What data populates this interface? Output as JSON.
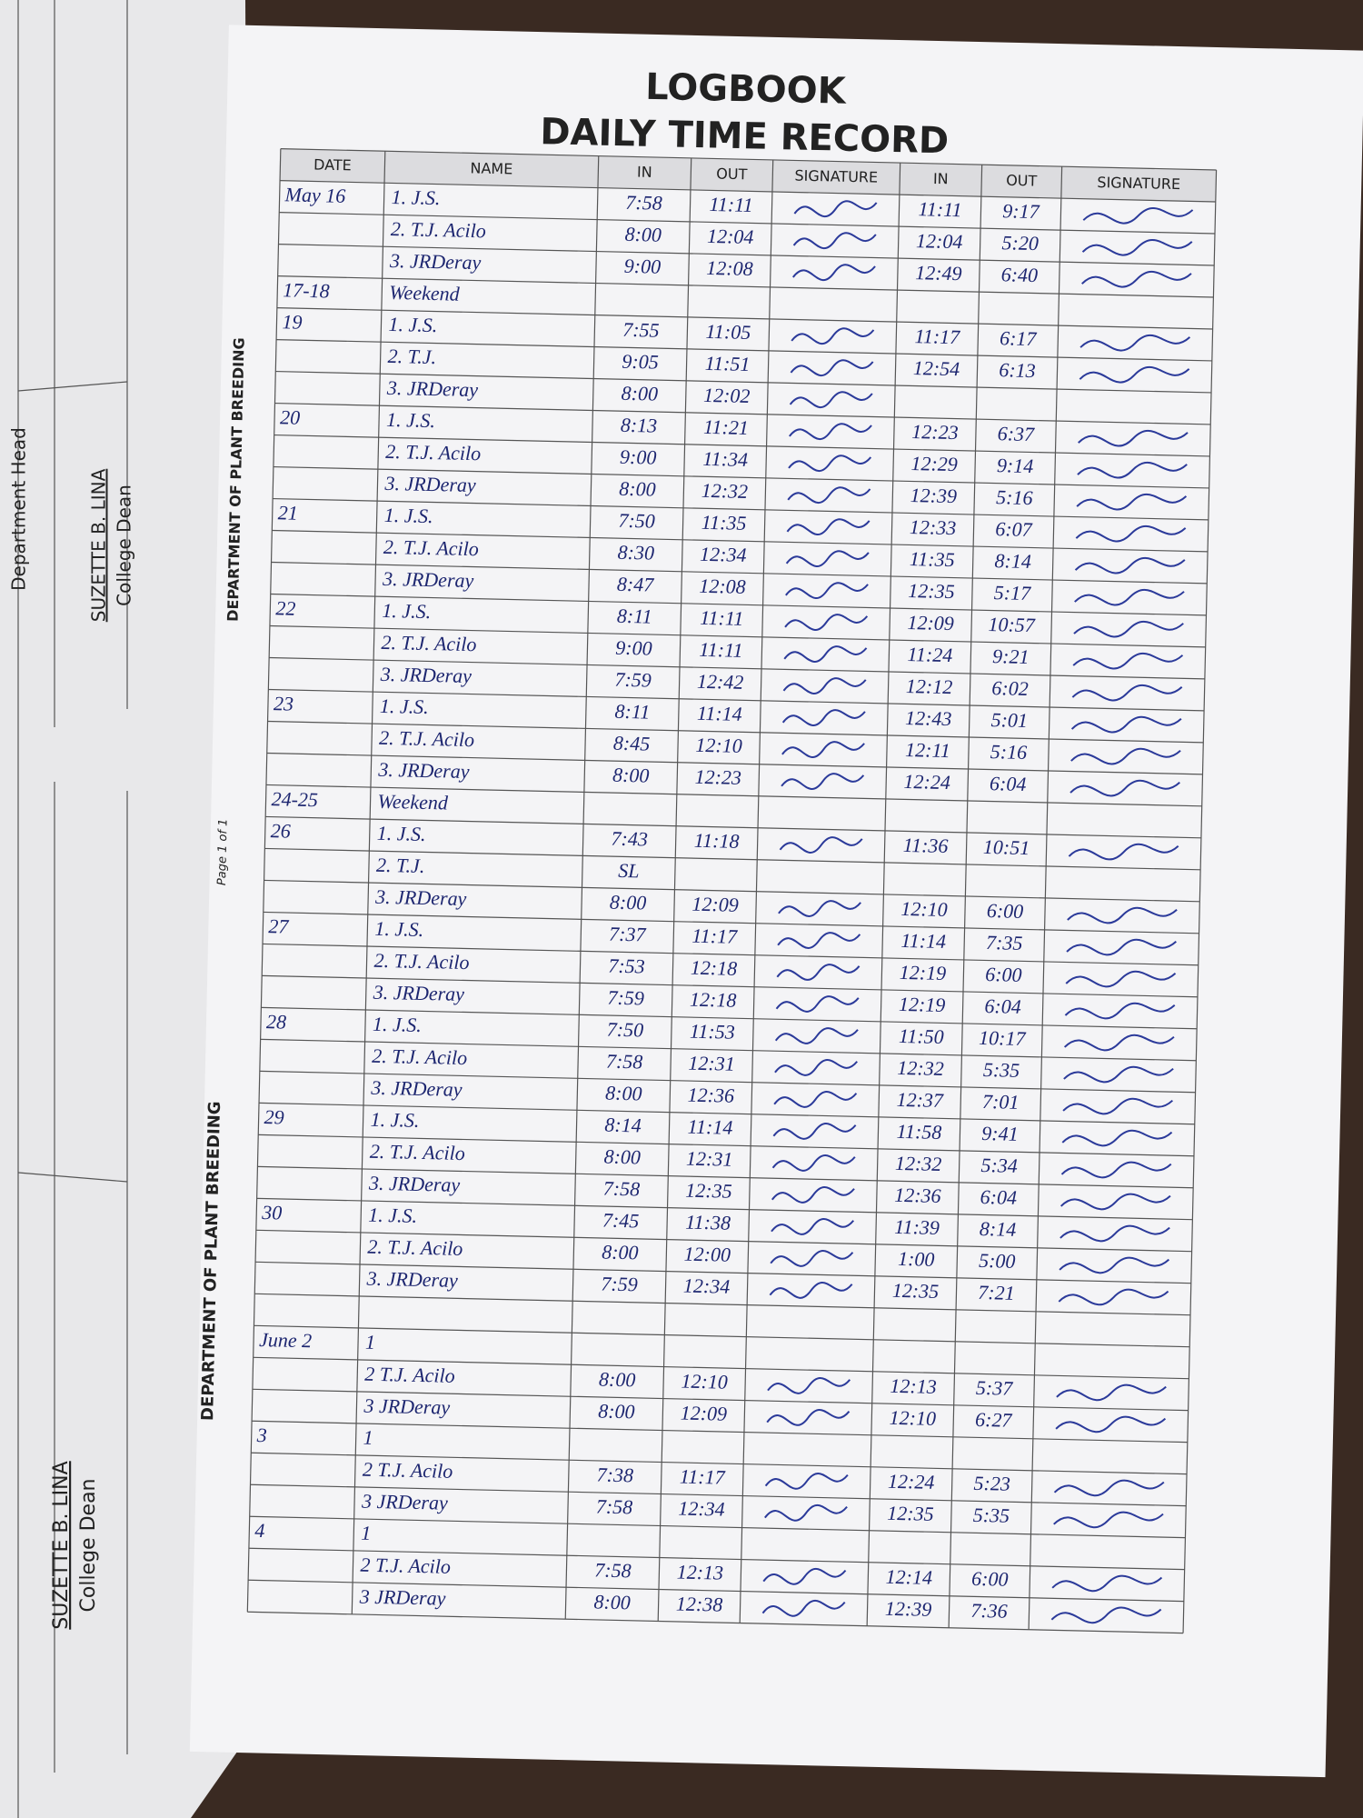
{
  "header": {
    "title": "LOGBOOK",
    "subtitle": "DAILY TIME RECORD"
  },
  "left_page": {
    "department_head": "Department Head",
    "signatories": [
      {
        "name": "SUZETTE B. LINA",
        "role": "College Dean"
      },
      {
        "name": "SUZETTE B. LINA",
        "role": "College Dean"
      }
    ],
    "side_text": [
      "DEPARTMENT OF PLANT BREEDING",
      "Page 1 of 1",
      "DEPARTMENT OF PLANT BREEDING"
    ]
  },
  "table": {
    "columns": [
      "DATE",
      "NAME",
      "IN",
      "OUT",
      "SIGNATURE",
      "IN",
      "OUT",
      "SIGNATURE"
    ],
    "rows": [
      {
        "date": "May 16",
        "name": "1. J.S.",
        "in": "7:58",
        "out": "11:11",
        "in2": "11:11",
        "out2": "9:17"
      },
      {
        "name": "2. T.J. Acilo",
        "in": "8:00",
        "out": "12:04",
        "in2": "12:04",
        "out2": "5:20"
      },
      {
        "name": "3. JRDeray",
        "in": "9:00",
        "out": "12:08",
        "in2": "12:49",
        "out2": "6:40"
      },
      {
        "date": "17-18",
        "name": "Weekend"
      },
      {
        "date": "19",
        "name": "1. J.S.",
        "in": "7:55",
        "out": "11:05",
        "in2": "11:17",
        "out2": "6:17"
      },
      {
        "name": "2. T.J.",
        "in": "9:05",
        "out": "11:51",
        "in2": "12:54",
        "out2": "6:13"
      },
      {
        "name": "3. JRDeray",
        "in": "8:00",
        "out": "12:02"
      },
      {
        "date": "20",
        "name": "1. J.S.",
        "in": "8:13",
        "out": "11:21",
        "in2": "12:23",
        "out2": "6:37"
      },
      {
        "name": "2. T.J. Acilo",
        "in": "9:00",
        "out": "11:34",
        "in2": "12:29",
        "out2": "9:14"
      },
      {
        "name": "3. JRDeray",
        "in": "8:00",
        "out": "12:32",
        "in2": "12:39",
        "out2": "5:16"
      },
      {
        "date": "21",
        "name": "1. J.S.",
        "in": "7:50",
        "out": "11:35",
        "in2": "12:33",
        "out2": "6:07"
      },
      {
        "name": "2. T.J. Acilo",
        "in": "8:30",
        "out": "12:34",
        "in2": "11:35",
        "out2": "8:14"
      },
      {
        "name": "3. JRDeray",
        "in": "8:47",
        "out": "12:08",
        "in2": "12:35",
        "out2": "5:17"
      },
      {
        "date": "22",
        "name": "1. J.S.",
        "in": "8:11",
        "out": "11:11",
        "in2": "12:09",
        "out2": "10:57"
      },
      {
        "name": "2. T.J. Acilo",
        "in": "9:00",
        "out": "11:11",
        "in2": "11:24",
        "out2": "9:21"
      },
      {
        "name": "3. JRDeray",
        "in": "7:59",
        "out": "12:42",
        "in2": "12:12",
        "out2": "6:02"
      },
      {
        "date": "23",
        "name": "1. J.S.",
        "in": "8:11",
        "out": "11:14",
        "in2": "12:43",
        "out2": "5:01"
      },
      {
        "name": "2. T.J. Acilo",
        "in": "8:45",
        "out": "12:10",
        "in2": "12:11",
        "out2": "5:16"
      },
      {
        "name": "3. JRDeray",
        "in": "8:00",
        "out": "12:23",
        "in2": "12:24",
        "out2": "6:04"
      },
      {
        "date": "24-25",
        "name": "Weekend"
      },
      {
        "date": "26",
        "name": "1. J.S.",
        "in": "7:43",
        "out": "11:18",
        "in2": "11:36",
        "out2": "10:51"
      },
      {
        "name": "2. T.J.",
        "in": "SL"
      },
      {
        "name": "3. JRDeray",
        "in": "8:00",
        "out": "12:09",
        "in2": "12:10",
        "out2": "6:00"
      },
      {
        "date": "27",
        "name": "1. J.S.",
        "in": "7:37",
        "out": "11:17",
        "in2": "11:14",
        "out2": "7:35"
      },
      {
        "name": "2. T.J. Acilo",
        "in": "7:53",
        "out": "12:18",
        "in2": "12:19",
        "out2": "6:00"
      },
      {
        "name": "3. JRDeray",
        "in": "7:59",
        "out": "12:18",
        "in2": "12:19",
        "out2": "6:04"
      },
      {
        "date": "28",
        "name": "1. J.S.",
        "in": "7:50",
        "out": "11:53",
        "in2": "11:50",
        "out2": "10:17"
      },
      {
        "name": "2. T.J. Acilo",
        "in": "7:58",
        "out": "12:31",
        "in2": "12:32",
        "out2": "5:35"
      },
      {
        "name": "3. JRDeray",
        "in": "8:00",
        "out": "12:36",
        "in2": "12:37",
        "out2": "7:01"
      },
      {
        "date": "29",
        "name": "1. J.S.",
        "in": "8:14",
        "out": "11:14",
        "in2": "11:58",
        "out2": "9:41"
      },
      {
        "name": "2. T.J. Acilo",
        "in": "8:00",
        "out": "12:31",
        "in2": "12:32",
        "out2": "5:34"
      },
      {
        "name": "3. JRDeray",
        "in": "7:58",
        "out": "12:35",
        "in2": "12:36",
        "out2": "6:04"
      },
      {
        "date": "30",
        "name": "1. J.S.",
        "in": "7:45",
        "out": "11:38",
        "in2": "11:39",
        "out2": "8:14"
      },
      {
        "name": "2. T.J. Acilo",
        "in": "8:00",
        "out": "12:00",
        "in2": "1:00",
        "out2": "5:00"
      },
      {
        "name": "3. JRDeray",
        "in": "7:59",
        "out": "12:34",
        "in2": "12:35",
        "out2": "7:21"
      },
      {},
      {
        "date": "June 2",
        "name": "1"
      },
      {
        "name": "2 T.J. Acilo",
        "in": "8:00",
        "out": "12:10",
        "in2": "12:13",
        "out2": "5:37"
      },
      {
        "name": "3 JRDeray",
        "in": "8:00",
        "out": "12:09",
        "in2": "12:10",
        "out2": "6:27"
      },
      {
        "date": "3",
        "name": "1"
      },
      {
        "name": "2 T.J. Acilo",
        "in": "7:38",
        "out": "11:17",
        "in2": "12:24",
        "out2": "5:23"
      },
      {
        "name": "3 JRDeray",
        "in": "7:58",
        "out": "12:34",
        "in2": "12:35",
        "out2": "5:35"
      },
      {
        "date": "4",
        "name": "1"
      },
      {
        "name": "2 T.J. Acilo",
        "in": "7:58",
        "out": "12:13",
        "in2": "12:14",
        "out2": "6:00"
      },
      {
        "name": "3 JRDeray",
        "in": "8:00",
        "out": "12:38",
        "in2": "12:39",
        "out2": "7:36"
      }
    ]
  }
}
